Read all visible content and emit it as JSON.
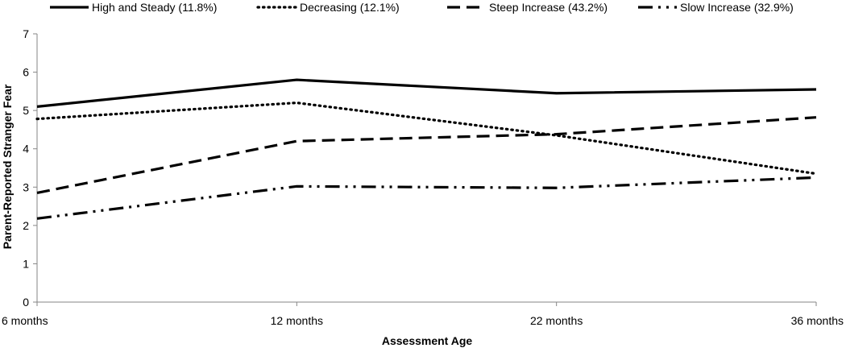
{
  "chart_data": {
    "type": "line",
    "title": "",
    "xlabel": "Assessment Age",
    "ylabel": "Parent-Reported Stranger Fear",
    "categories": [
      "6 months",
      "12 months",
      "22 months",
      "36 months"
    ],
    "ylim": [
      0,
      7
    ],
    "yticks": [
      0,
      1,
      2,
      3,
      4,
      5,
      6,
      7
    ],
    "grid": false,
    "legend_position": "top",
    "series": [
      {
        "name": "High and Steady (11.8%)",
        "style": "solid",
        "values": [
          5.1,
          5.8,
          5.45,
          5.55
        ]
      },
      {
        "name": "Decreasing (12.1%)",
        "style": "dotted",
        "values": [
          4.78,
          5.2,
          4.35,
          3.35
        ]
      },
      {
        "name": "Steep Increase (43.2%)",
        "style": "dashed",
        "values": [
          2.85,
          4.2,
          4.38,
          4.82
        ]
      },
      {
        "name": "Slow Increase (32.9%)",
        "style": "dash-dot-dot",
        "values": [
          2.18,
          3.02,
          2.98,
          3.25
        ]
      }
    ],
    "colors": {
      "line": "#000000",
      "axis": "#868686"
    }
  }
}
